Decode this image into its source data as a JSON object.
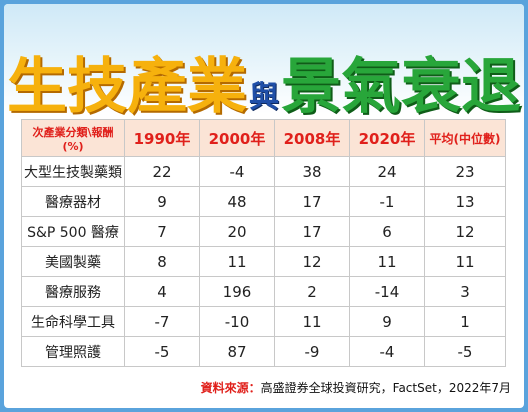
{
  "title": {
    "part1": "生技產業",
    "part2": "與",
    "part3": "景氣衰退"
  },
  "table": {
    "headers": [
      "次產業分類\\報酬(%)",
      "1990年",
      "2000年",
      "2008年",
      "2020年",
      "平均(中位數)"
    ],
    "rows": [
      [
        "大型生技製藥類",
        "22",
        "-4",
        "38",
        "24",
        "23"
      ],
      [
        "醫療器材",
        "9",
        "48",
        "17",
        "-1",
        "13"
      ],
      [
        "S&P 500 醫療",
        "7",
        "20",
        "17",
        "6",
        "12"
      ],
      [
        "美國製藥",
        "8",
        "11",
        "12",
        "11",
        "11"
      ],
      [
        "醫療服務",
        "4",
        "196",
        "2",
        "-14",
        "3"
      ],
      [
        "生命科學工具",
        "-7",
        "-10",
        "11",
        "9",
        "1"
      ],
      [
        "管理照護",
        "-5",
        "87",
        "-9",
        "-4",
        "-5"
      ]
    ]
  },
  "source": {
    "label": "資料來源：",
    "text": "高盛證券全球投資研究，FactSet，2022年7月"
  },
  "colors": {
    "title_yellow": "#f6b10d",
    "title_blue": "#1f4fa8",
    "title_green": "#28a63a",
    "header_bg": "#fbe4d6",
    "header_text": "#e0201b",
    "frame_blue": "#5aa3dc"
  }
}
